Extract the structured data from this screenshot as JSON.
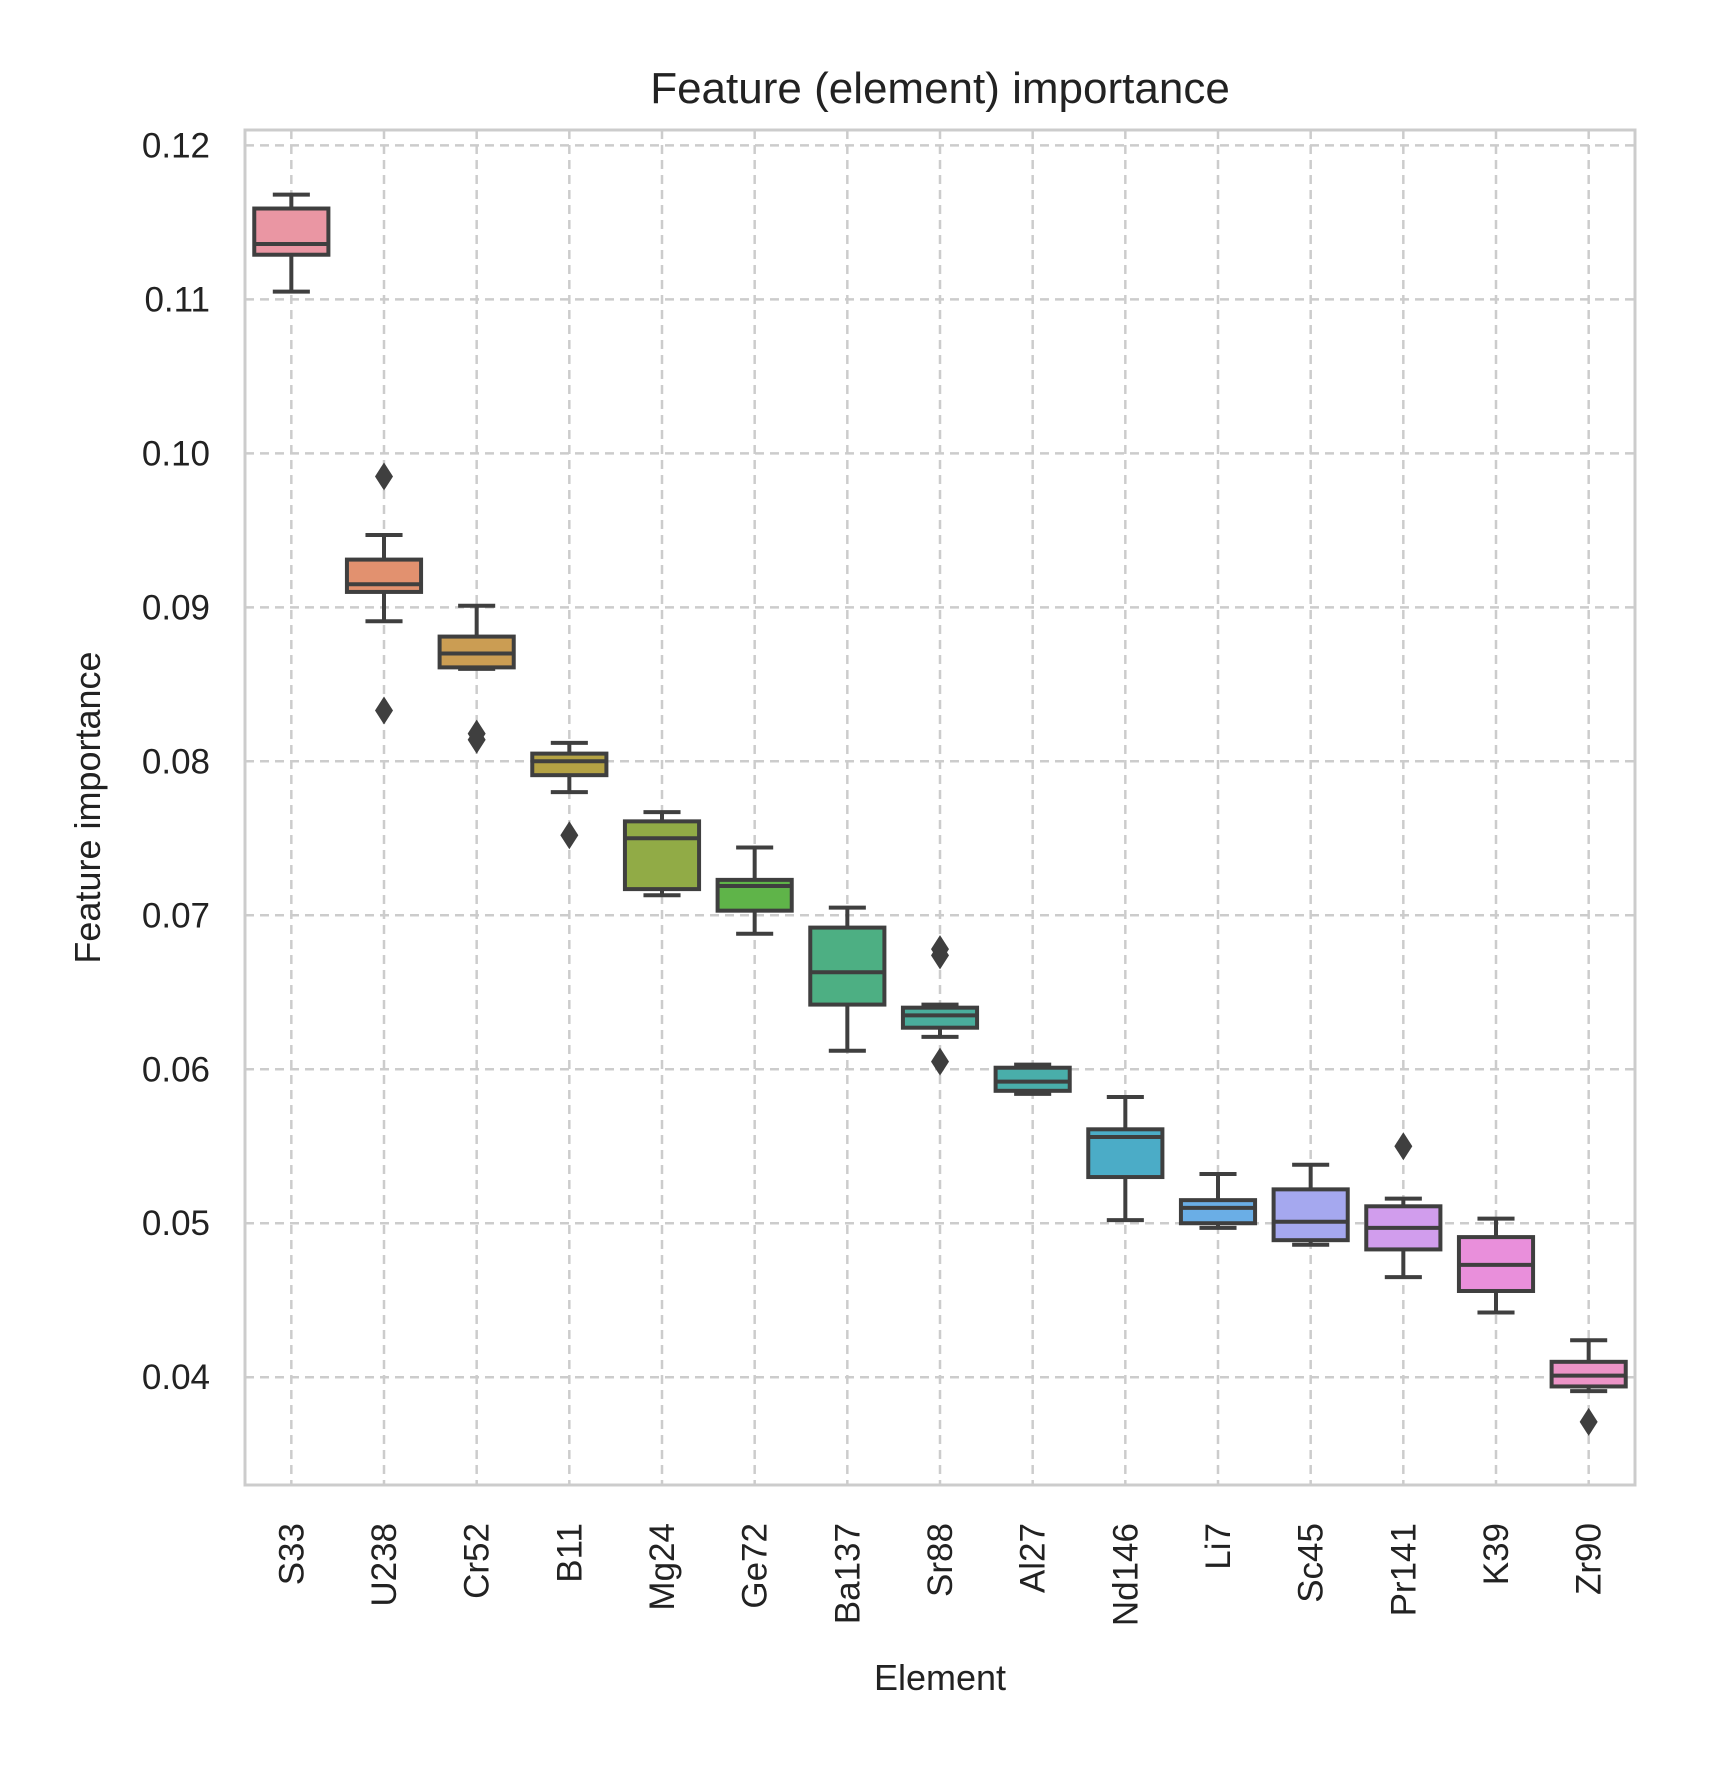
{
  "chart_data": {
    "type": "box",
    "title": "Feature (element) importance",
    "xlabel": "Element",
    "ylabel": "Feature importance",
    "ylim": [
      0.033,
      0.121
    ],
    "yticks": [
      "0.04",
      "0.05",
      "0.06",
      "0.07",
      "0.08",
      "0.09",
      "0.10",
      "0.11",
      "0.12"
    ],
    "ytick_values": [
      0.04,
      0.05,
      0.06,
      0.07,
      0.08,
      0.09,
      0.1,
      0.11,
      0.12
    ],
    "grid": true,
    "categories": [
      "S33",
      "U238",
      "Cr52",
      "B11",
      "Mg24",
      "Ge72",
      "Ba137",
      "Sr88",
      "Al27",
      "Nd146",
      "Li7",
      "Sc45",
      "Pr141",
      "K39",
      "Zr90"
    ],
    "boxes": [
      {
        "label": "S33",
        "whislo": 0.1105,
        "q1": 0.1129,
        "med": 0.1136,
        "q3": 0.1159,
        "whishi": 0.1168,
        "fliers": [],
        "color": "#ea96a3"
      },
      {
        "label": "U238",
        "whislo": 0.0891,
        "q1": 0.091,
        "med": 0.0915,
        "q3": 0.0931,
        "whishi": 0.0947,
        "fliers": [
          0.0985,
          0.0833
        ],
        "color": "#e2916f"
      },
      {
        "label": "Cr52",
        "whislo": 0.086,
        "q1": 0.0861,
        "med": 0.087,
        "q3": 0.0881,
        "whishi": 0.0901,
        "fliers": [
          0.0818,
          0.0814
        ],
        "color": "#cb9d53"
      },
      {
        "label": "B11",
        "whislo": 0.078,
        "q1": 0.0791,
        "med": 0.08,
        "q3": 0.0805,
        "whishi": 0.0812,
        "fliers": [
          0.0752
        ],
        "color": "#b4a244"
      },
      {
        "label": "Mg24",
        "whislo": 0.0713,
        "q1": 0.0717,
        "med": 0.075,
        "q3": 0.0761,
        "whishi": 0.0767,
        "fliers": [],
        "color": "#91ab46"
      },
      {
        "label": "Ge72",
        "whislo": 0.0688,
        "q1": 0.0703,
        "med": 0.0719,
        "q3": 0.0723,
        "whishi": 0.0744,
        "fliers": [],
        "color": "#5fb449"
      },
      {
        "label": "Ba137",
        "whislo": 0.0612,
        "q1": 0.0642,
        "med": 0.0663,
        "q3": 0.0692,
        "whishi": 0.0705,
        "fliers": [],
        "color": "#4daf83"
      },
      {
        "label": "Sr88",
        "whislo": 0.0621,
        "q1": 0.0627,
        "med": 0.0635,
        "q3": 0.064,
        "whishi": 0.0642,
        "fliers": [
          0.0678,
          0.0674,
          0.0605
        ],
        "color": "#4aad9c"
      },
      {
        "label": "Al27",
        "whislo": 0.0584,
        "q1": 0.0586,
        "med": 0.0592,
        "q3": 0.0601,
        "whishi": 0.0603,
        "fliers": [],
        "color": "#49aeaa"
      },
      {
        "label": "Nd146",
        "whislo": 0.0502,
        "q1": 0.053,
        "med": 0.0556,
        "q3": 0.0561,
        "whishi": 0.0582,
        "fliers": [],
        "color": "#4bacc7"
      },
      {
        "label": "Li7",
        "whislo": 0.0497,
        "q1": 0.05,
        "med": 0.051,
        "q3": 0.0515,
        "whishi": 0.0532,
        "fliers": [],
        "color": "#6aaee6"
      },
      {
        "label": "Sc45",
        "whislo": 0.0486,
        "q1": 0.0489,
        "med": 0.0501,
        "q3": 0.0522,
        "whishi": 0.0538,
        "fliers": [],
        "color": "#a5a8ef"
      },
      {
        "label": "Pr141",
        "whislo": 0.0465,
        "q1": 0.0483,
        "med": 0.0497,
        "q3": 0.0511,
        "whishi": 0.0516,
        "fliers": [
          0.055
        ],
        "color": "#d19ded"
      },
      {
        "label": "K39",
        "whislo": 0.0442,
        "q1": 0.0456,
        "med": 0.0473,
        "q3": 0.0491,
        "whishi": 0.0503,
        "fliers": [],
        "color": "#e98fdb"
      },
      {
        "label": "Zr90",
        "whislo": 0.0391,
        "q1": 0.0394,
        "med": 0.0401,
        "q3": 0.041,
        "whishi": 0.0424,
        "fliers": [
          0.0371
        ],
        "color": "#ec94c7"
      }
    ]
  }
}
